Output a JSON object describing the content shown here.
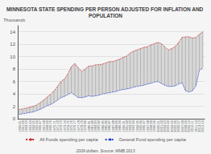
{
  "chart_data": {
    "type": "line",
    "title": "MINNESOTA STATE SPENDING PER PERSON ADJUSTED FOR INFLATION AND POPULATION",
    "ylabel": "Thousands",
    "annotation": "2009 dollars. Source: MMB 2013",
    "categories": [
      "1960-61",
      "1961-62",
      "1962-63",
      "1963-64",
      "1964-65",
      "1965-66",
      "1966-67",
      "1967-68",
      "1968-69",
      "1969-70",
      "1970-71",
      "1971-72",
      "1972-73",
      "1973-74",
      "1974-75",
      "1975-76",
      "1976-77",
      "1977-78",
      "1978-79",
      "1979-80",
      "1980-81",
      "1981-82",
      "1982-83",
      "1983-84",
      "1984-85",
      "1985-86",
      "1986-87",
      "1987-88",
      "1988-89",
      "1989-90",
      "1990-91",
      "1991-92",
      "1992-93",
      "1993-94",
      "1994-95",
      "1995-96",
      "1996-97",
      "1997-98",
      "1998-99",
      "1999-00",
      "2000-01",
      "2001-02",
      "2002-03",
      "2003-04",
      "2004-05",
      "2005-06",
      "2006-07",
      "2007-08",
      "2008-09",
      "2009-10",
      "2010-11",
      "2011-12",
      "2012-13",
      "2013-14"
    ],
    "series": [
      {
        "name": "All Funds spending per capita",
        "color": "#cc2222",
        "line_style": "dotted",
        "values": [
          1.5,
          1.6,
          1.7,
          1.85,
          2.0,
          2.2,
          2.6,
          3.0,
          3.5,
          3.9,
          4.5,
          5.2,
          6.0,
          6.4,
          7.2,
          8.4,
          8.9,
          8.2,
          7.6,
          8.0,
          8.5,
          8.5,
          8.7,
          8.7,
          8.8,
          9.0,
          9.2,
          9.2,
          9.4,
          9.6,
          9.9,
          10.1,
          10.6,
          10.9,
          11.1,
          11.3,
          11.5,
          11.6,
          11.9,
          12.1,
          12.3,
          12.1,
          11.6,
          11.1,
          11.3,
          11.6,
          12.3,
          13.1,
          13.2,
          13.2,
          13.0,
          13.1,
          13.6,
          14.0
        ]
      },
      {
        "name": "General Fund spending per capita",
        "color": "#2244cc",
        "line_style": "dotted",
        "values": [
          0.7,
          0.8,
          0.9,
          1.0,
          1.1,
          1.3,
          1.5,
          1.8,
          2.1,
          2.3,
          2.6,
          3.0,
          3.4,
          3.6,
          3.9,
          4.2,
          3.8,
          3.4,
          3.4,
          3.5,
          3.7,
          3.6,
          3.7,
          3.8,
          4.0,
          4.1,
          4.2,
          4.3,
          4.4,
          4.6,
          4.7,
          4.8,
          4.9,
          5.1,
          5.2,
          5.3,
          5.4,
          5.6,
          5.7,
          5.9,
          6.0,
          5.7,
          5.4,
          5.2,
          5.2,
          5.3,
          5.6,
          5.8,
          4.5,
          4.3,
          4.5,
          5.3,
          7.8,
          8.2
        ]
      }
    ],
    "ylim": [
      0,
      15
    ],
    "yticks": [
      0,
      2,
      4,
      6,
      8,
      10,
      12,
      14
    ],
    "grid": true,
    "legend": "bottom"
  }
}
